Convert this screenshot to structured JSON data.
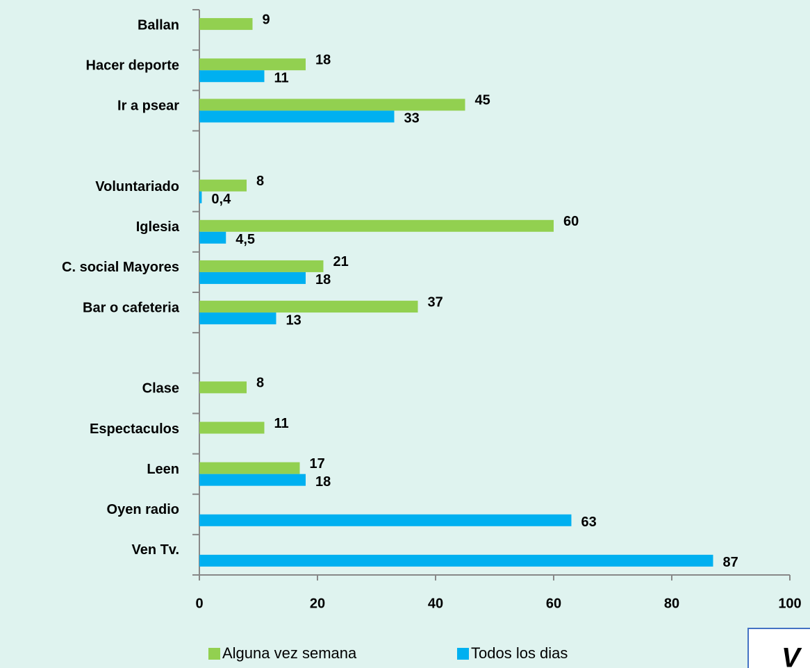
{
  "chart_data": {
    "type": "bar",
    "orientation": "horizontal",
    "categories": [
      "Ballan",
      "Hacer deporte",
      "Ir a psear",
      null,
      "Voluntariado",
      "Iglesia",
      "C. social Mayores",
      "Bar o cafeteria",
      null,
      "Clase",
      "Espectaculos",
      "Leen",
      "Oyen radio",
      "Ven Tv."
    ],
    "series": [
      {
        "name": "Alguna vez semana",
        "color": "#92d050",
        "values": [
          9,
          18,
          45,
          null,
          8,
          60,
          21,
          37,
          null,
          8,
          11,
          17,
          null,
          null
        ]
      },
      {
        "name": "Todos los dias",
        "color": "#00b0f0",
        "values": [
          null,
          11,
          33,
          null,
          0.4,
          4.5,
          18,
          13,
          null,
          null,
          null,
          18,
          63,
          87
        ],
        "value_labels": [
          null,
          "11",
          "33",
          null,
          "0,4",
          "4,5",
          "18",
          "13",
          null,
          null,
          null,
          "18",
          "63",
          "87"
        ]
      }
    ],
    "xlim": [
      0,
      100
    ],
    "xticks": [
      0,
      20,
      40,
      60,
      80,
      100
    ],
    "legend": "bottom",
    "annotation": "V"
  }
}
